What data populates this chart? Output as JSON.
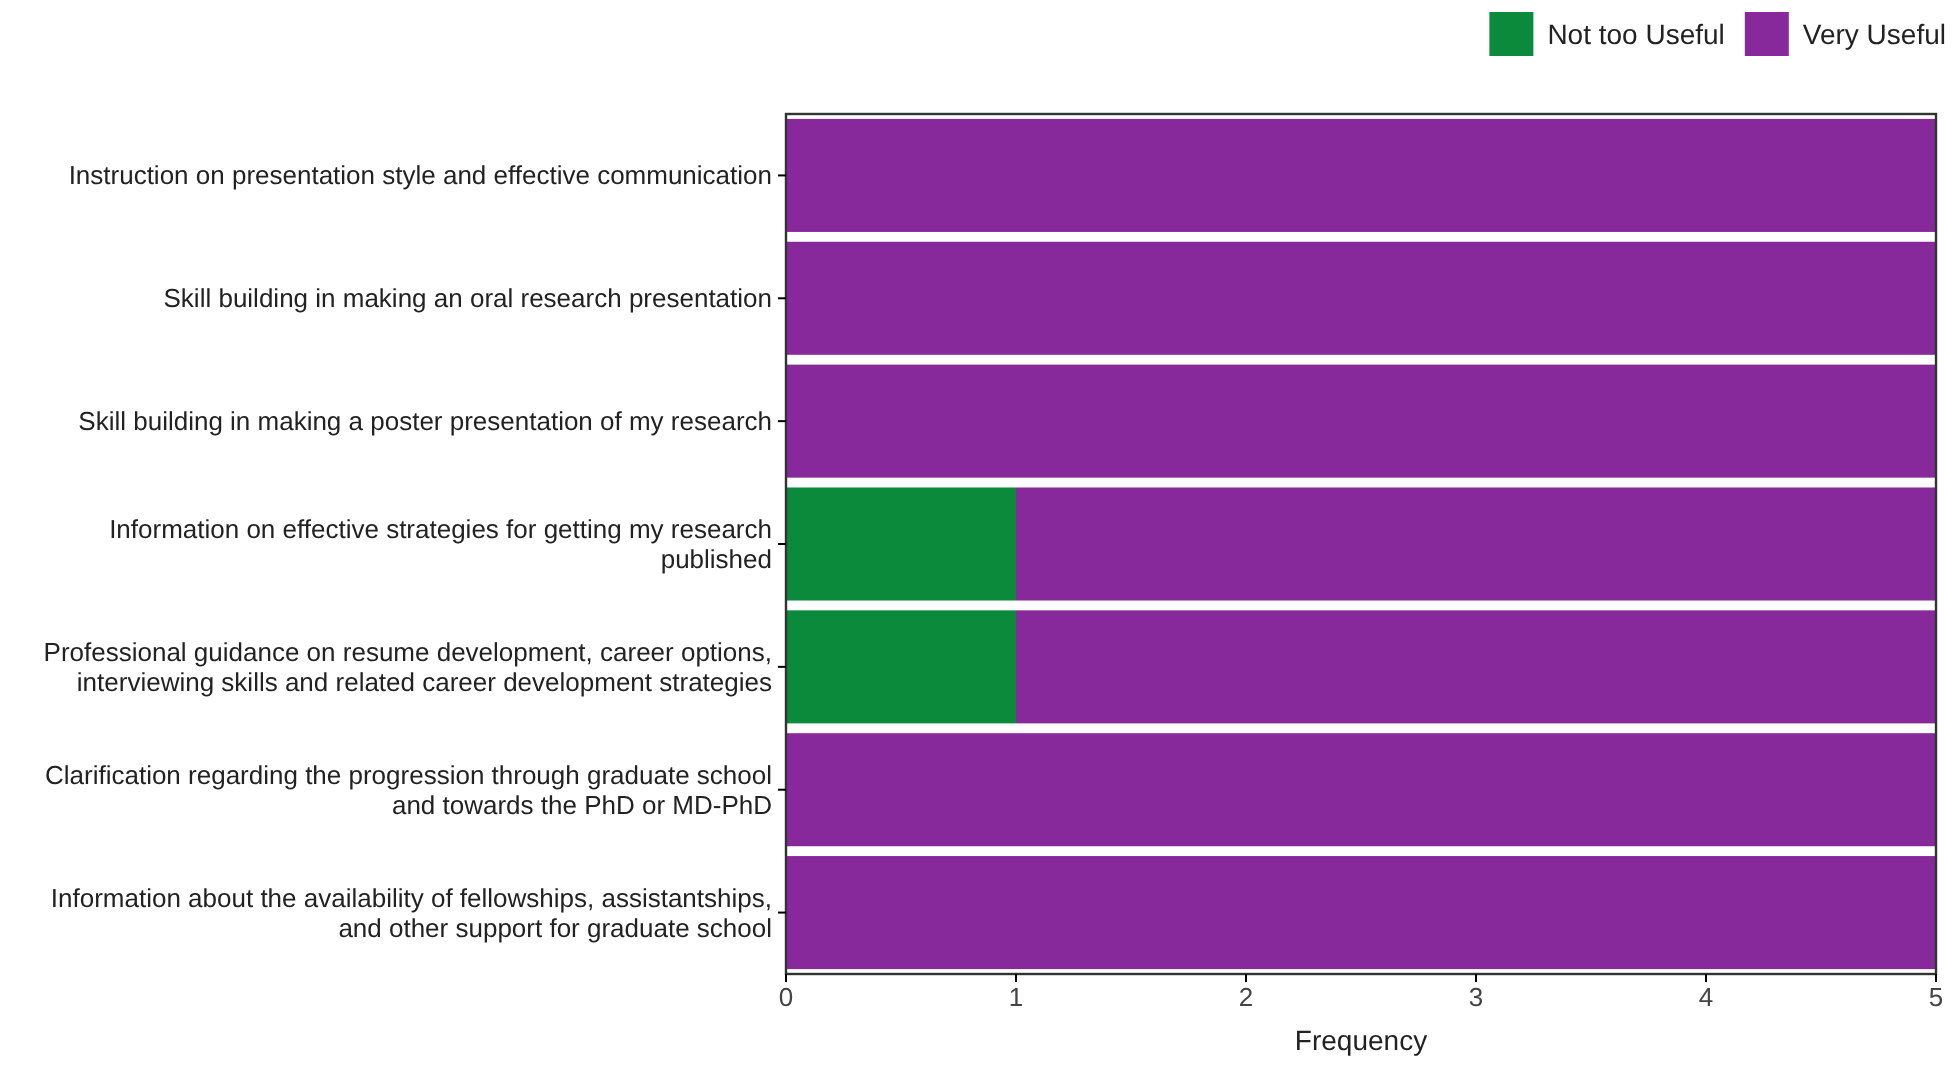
{
  "chart_data": {
    "type": "bar",
    "orientation": "horizontal",
    "stacked": true,
    "xlabel": "Frequency",
    "legend": "top right",
    "categories": [
      "Instruction on presentation style and effective communication",
      "Skill building in making an oral research presentation",
      "Skill building in making a poster presentation of my research",
      "Information on effective strategies for getting my research published",
      "Professional guidance on resume development, career options, interviewing skills and related career development strategies",
      "Clarification regarding the progression through graduate school and towards the PhD or MD-PhD",
      "Information about the availability of fellowships, assistantships, and other support for graduate school"
    ],
    "series": [
      {
        "name": "Not too Useful",
        "color": "#0a8a3a",
        "values": [
          0,
          0,
          0,
          1,
          1,
          0,
          0
        ]
      },
      {
        "name": "Very Useful",
        "color": "#87299a",
        "values": [
          5,
          5,
          5,
          4,
          4,
          5,
          5
        ]
      }
    ],
    "xlim": [
      0,
      5
    ],
    "xticks": [
      0,
      1,
      2,
      3,
      4,
      5
    ]
  }
}
